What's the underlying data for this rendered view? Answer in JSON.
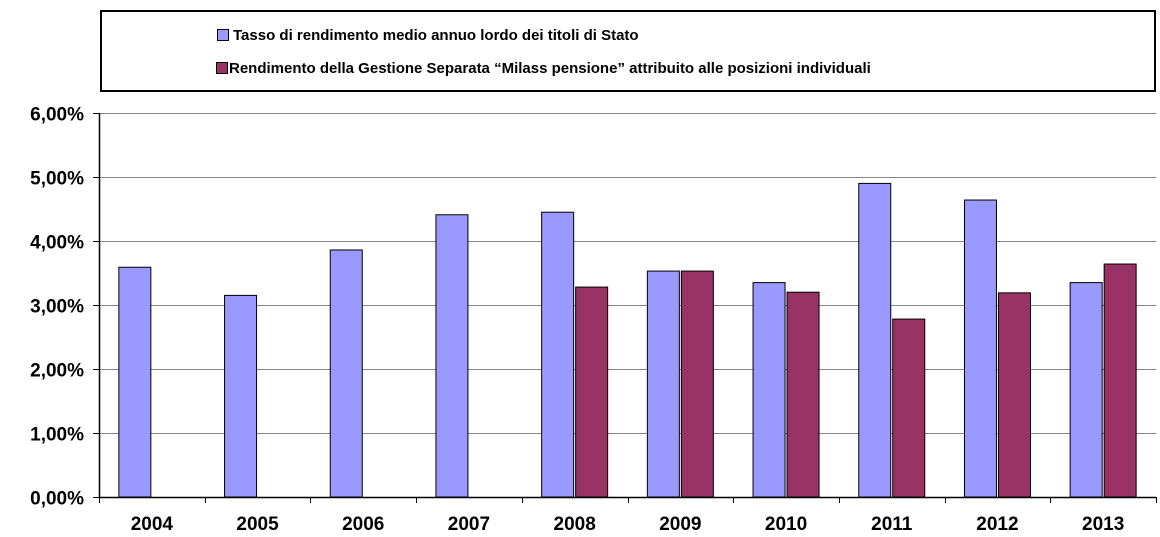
{
  "chart_data": {
    "type": "bar",
    "categories": [
      "2004",
      "2005",
      "2006",
      "2007",
      "2008",
      "2009",
      "2010",
      "2011",
      "2012",
      "2013"
    ],
    "series": [
      {
        "name": "Tasso di rendimento medio annuo lordo dei titoli di Stato",
        "color": "#9999ff",
        "values": [
          3.59,
          3.15,
          3.86,
          4.41,
          4.45,
          3.53,
          3.35,
          4.9,
          4.64,
          3.35
        ]
      },
      {
        "name": "Rendimento della Gestione Separata “Milass pensione” attribuito alle posizioni individuali",
        "color": "#993366",
        "values": [
          null,
          null,
          null,
          null,
          3.28,
          3.53,
          3.2,
          2.78,
          3.19,
          3.64
        ]
      }
    ],
    "ylim": [
      0,
      6
    ],
    "yticks": [
      "0,00%",
      "1,00%",
      "2,00%",
      "3,00%",
      "4,00%",
      "5,00%",
      "6,00%"
    ],
    "grid": true,
    "legend_position": "top",
    "title": "",
    "xlabel": "",
    "ylabel": ""
  }
}
